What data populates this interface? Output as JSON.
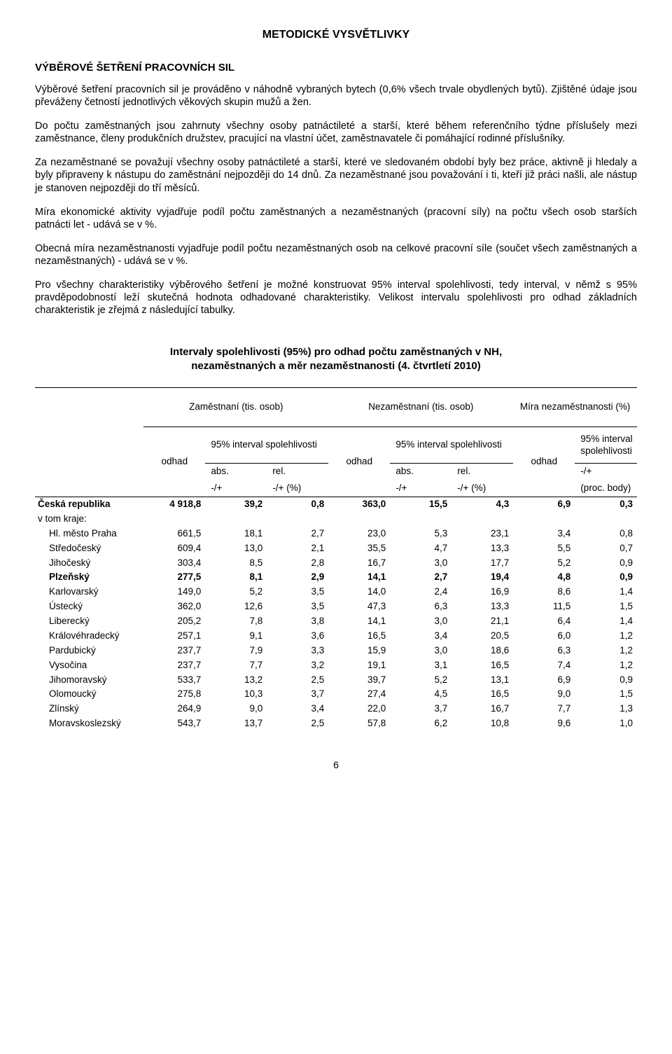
{
  "title": "METODICKÉ VYSVĚTLIVKY",
  "heading": "VÝBĚROVÉ ŠETŘENÍ PRACOVNÍCH SIL",
  "paragraphs": [
    "Výběrové šetření pracovních sil je prováděno v náhodně vybraných bytech (0,6% všech trvale obydlených bytů). Zjištěné údaje jsou převáženy četností jednotlivých věkových skupin mužů a žen.",
    "Do počtu zaměstnaných jsou zahrnuty všechny osoby patnáctileté a starší, které během referenčního týdne příslušely mezi zaměstnance, členy produkčních družstev, pracující na vlastní účet, zaměstnavatele či pomáhající rodinné příslušníky.",
    "Za nezaměstnané se považují všechny osoby patnáctileté a starší, které ve sledovaném období byly bez práce, aktivně ji hledaly a byly připraveny k nástupu do zaměstnání nejpozději do 14 dnů. Za nezaměstnané jsou považování i ti, kteří již práci našli, ale nástup je stanoven nejpozději do tří měsíců.",
    "Míra ekonomické aktivity vyjadřuje podíl počtu zaměstnaných a nezaměstnaných (pracovní síly) na počtu všech osob starších patnácti let - udává se v %.",
    "Obecná míra nezaměstnanosti vyjadřuje podíl počtu nezaměstnaných osob na celkové pracovní síle (součet všech zaměstnaných a nezaměstnaných) - udává se v %.",
    "Pro všechny charakteristiky výběrového šetření je možné konstruovat 95% interval spolehlivosti, tedy interval, v němž s 95% pravděpodobností leží skutečná hodnota odhadované charakteristiky. Velikost intervalu spolehlivosti pro odhad základních charakteristik je zřejmá z následující tabulky."
  ],
  "table_title_l1": "Intervaly spolehlivosti (95%) pro odhad počtu zaměstnaných v NH,",
  "table_title_l2": "nezaměstnaných a měr nezaměstnanosti (4. čtvrtletí 2010)",
  "table": {
    "group_headers": [
      "Zaměstnaní (tis. osob)",
      "Nezaměstnaní (tis. osob)",
      "Míra nezaměstnanosti (%)"
    ],
    "odhad": "odhad",
    "ci_label": "95% interval spolehlivosti",
    "abs": "abs.",
    "rel": "rel.",
    "pm": "-/+",
    "pm_pct": "-/+ (%)",
    "proc": "(proc. body)",
    "rows": [
      {
        "region": "Česká republika",
        "indent": false,
        "bold": true,
        "v": [
          "4 918,8",
          "39,2",
          "0,8",
          "363,0",
          "15,5",
          "4,3",
          "6,9",
          "0,3"
        ]
      },
      {
        "region": "v tom kraje:",
        "indent": false,
        "bold": false,
        "v": [
          "",
          "",
          "",
          "",
          "",
          "",
          "",
          ""
        ]
      },
      {
        "region": "Hl. město Praha",
        "indent": true,
        "bold": false,
        "v": [
          "661,5",
          "18,1",
          "2,7",
          "23,0",
          "5,3",
          "23,1",
          "3,4",
          "0,8"
        ]
      },
      {
        "region": "Středočeský",
        "indent": true,
        "bold": false,
        "v": [
          "609,4",
          "13,0",
          "2,1",
          "35,5",
          "4,7",
          "13,3",
          "5,5",
          "0,7"
        ]
      },
      {
        "region": "Jihočeský",
        "indent": true,
        "bold": false,
        "v": [
          "303,4",
          "8,5",
          "2,8",
          "16,7",
          "3,0",
          "17,7",
          "5,2",
          "0,9"
        ]
      },
      {
        "region": "Plzeňský",
        "indent": true,
        "bold": true,
        "v": [
          "277,5",
          "8,1",
          "2,9",
          "14,1",
          "2,7",
          "19,4",
          "4,8",
          "0,9"
        ]
      },
      {
        "region": "Karlovarský",
        "indent": true,
        "bold": false,
        "v": [
          "149,0",
          "5,2",
          "3,5",
          "14,0",
          "2,4",
          "16,9",
          "8,6",
          "1,4"
        ]
      },
      {
        "region": "Ústecký",
        "indent": true,
        "bold": false,
        "v": [
          "362,0",
          "12,6",
          "3,5",
          "47,3",
          "6,3",
          "13,3",
          "11,5",
          "1,5"
        ]
      },
      {
        "region": "Liberecký",
        "indent": true,
        "bold": false,
        "v": [
          "205,2",
          "7,8",
          "3,8",
          "14,1",
          "3,0",
          "21,1",
          "6,4",
          "1,4"
        ]
      },
      {
        "region": "Královéhradecký",
        "indent": true,
        "bold": false,
        "v": [
          "257,1",
          "9,1",
          "3,6",
          "16,5",
          "3,4",
          "20,5",
          "6,0",
          "1,2"
        ]
      },
      {
        "region": "Pardubický",
        "indent": true,
        "bold": false,
        "v": [
          "237,7",
          "7,9",
          "3,3",
          "15,9",
          "3,0",
          "18,6",
          "6,3",
          "1,2"
        ]
      },
      {
        "region": "Vysočina",
        "indent": true,
        "bold": false,
        "v": [
          "237,7",
          "7,7",
          "3,2",
          "19,1",
          "3,1",
          "16,5",
          "7,4",
          "1,2"
        ]
      },
      {
        "region": "Jihomoravský",
        "indent": true,
        "bold": false,
        "v": [
          "533,7",
          "13,2",
          "2,5",
          "39,7",
          "5,2",
          "13,1",
          "6,9",
          "0,9"
        ]
      },
      {
        "region": "Olomoucký",
        "indent": true,
        "bold": false,
        "v": [
          "275,8",
          "10,3",
          "3,7",
          "27,4",
          "4,5",
          "16,5",
          "9,0",
          "1,5"
        ]
      },
      {
        "region": "Zlínský",
        "indent": true,
        "bold": false,
        "v": [
          "264,9",
          "9,0",
          "3,4",
          "22,0",
          "3,7",
          "16,7",
          "7,7",
          "1,3"
        ]
      },
      {
        "region": "Moravskoslezský",
        "indent": true,
        "bold": false,
        "v": [
          "543,7",
          "13,7",
          "2,5",
          "57,8",
          "6,2",
          "10,8",
          "9,6",
          "1,0"
        ]
      }
    ]
  },
  "page_number": "6"
}
